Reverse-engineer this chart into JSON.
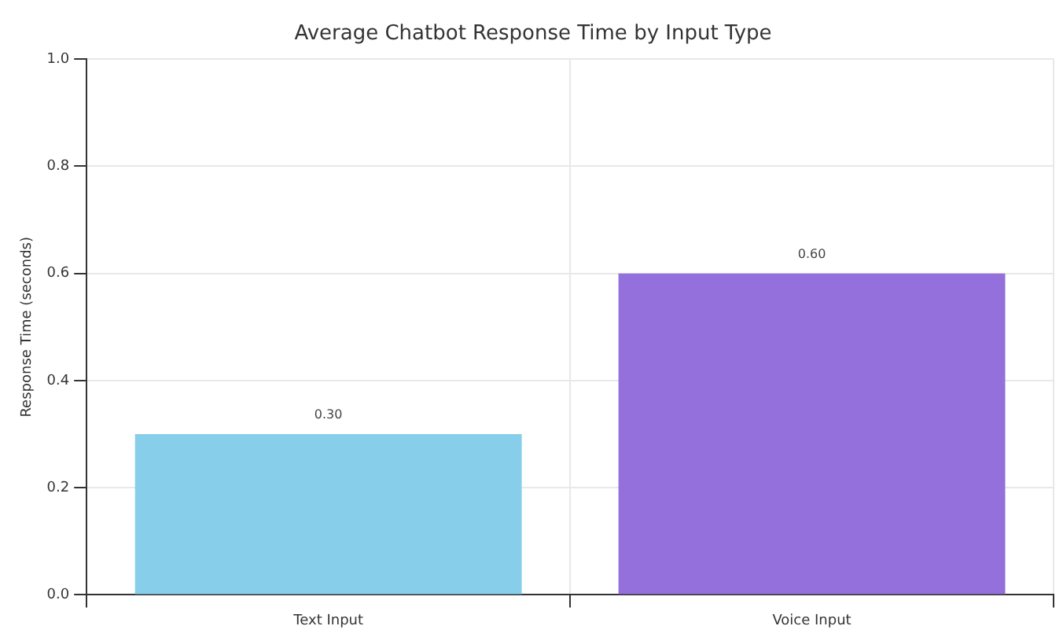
{
  "chart_data": {
    "type": "bar",
    "title": "Average Chatbot Response Time by Input Type",
    "ylabel": "Response Time (seconds)",
    "categories": [
      "Text Input",
      "Voice Input"
    ],
    "values": [
      0.3,
      0.6
    ],
    "colors": [
      "#87ceeb",
      "#9370db"
    ],
    "value_labels": [
      "0.30",
      "0.60"
    ],
    "ylim": [
      0,
      1
    ],
    "yticks": [
      {
        "value": 0,
        "label": "0.0"
      },
      {
        "value": 0.2,
        "label": "0.2"
      },
      {
        "value": 0.4,
        "label": "0.4"
      },
      {
        "value": 0.6,
        "label": "0.6"
      },
      {
        "value": 0.8,
        "label": "0.8"
      },
      {
        "value": 1,
        "label": "1.0"
      }
    ],
    "grid": true
  }
}
